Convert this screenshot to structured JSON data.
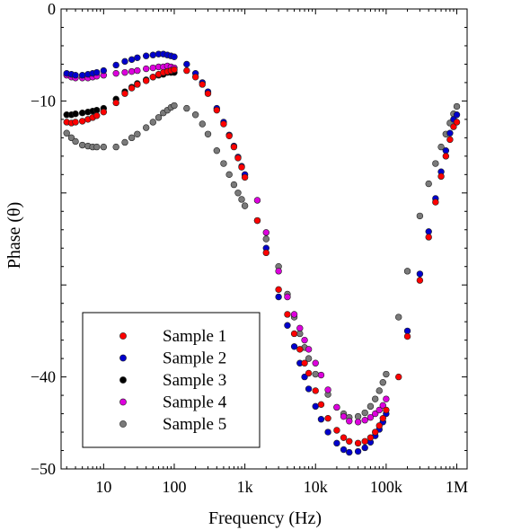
{
  "chart_data": {
    "type": "scatter",
    "xlabel": "Frequency (Hz)",
    "ylabel": "Phase (θ)",
    "x_scale": "log",
    "xlim": [
      2.5,
      1400000
    ],
    "ylim": [
      -50,
      0
    ],
    "x_ticks": [
      {
        "value": 10,
        "label": "10"
      },
      {
        "value": 100,
        "label": "100"
      },
      {
        "value": 1000,
        "label": "1k"
      },
      {
        "value": 10000,
        "label": "10k"
      },
      {
        "value": 100000,
        "label": "100k"
      },
      {
        "value": 1000000,
        "label": "1M"
      }
    ],
    "y_ticks": [
      {
        "value": 0,
        "label": "0"
      },
      {
        "value": -10,
        "label": "−10"
      },
      {
        "value": -40,
        "label": "−40"
      },
      {
        "value": -50,
        "label": "−50"
      }
    ],
    "y_minor_ticks": [
      -20,
      -30
    ],
    "grid": false,
    "legend_position": "bottom-left",
    "series": [
      {
        "name": "Sample 1",
        "color": "#ff0000",
        "x": [
          3,
          3.5,
          4,
          5,
          6,
          7,
          8,
          10,
          15,
          20,
          25,
          30,
          40,
          50,
          60,
          70,
          80,
          90,
          100,
          150,
          200,
          250,
          300,
          400,
          500,
          600,
          700,
          800,
          900,
          1000,
          1500,
          2000,
          3000,
          4000,
          5000,
          6000,
          7000,
          8000,
          10000,
          12000,
          15000,
          20000,
          25000,
          30000,
          40000,
          50000,
          60000,
          70000,
          80000,
          90000,
          100000,
          150000,
          200000,
          300000,
          400000,
          500000,
          600000,
          700000,
          800000,
          900000,
          1000000
        ],
        "y": [
          -12.3,
          -12.4,
          -12.3,
          -12.2,
          -12.0,
          -11.8,
          -11.6,
          -11.2,
          -10.2,
          -9.2,
          -8.6,
          -8.2,
          -7.8,
          -7.4,
          -7.1,
          -6.9,
          -6.8,
          -6.7,
          -6.6,
          -6.7,
          -7.4,
          -8.2,
          -9.2,
          -11.0,
          -12.5,
          -13.8,
          -15.0,
          -16.2,
          -17.2,
          -18.3,
          -23.0,
          -26.5,
          -30.5,
          -33.2,
          -35.3,
          -37.0,
          -38.5,
          -39.6,
          -41.5,
          -43.0,
          -44.5,
          -45.8,
          -46.6,
          -47.0,
          -47.2,
          -47.0,
          -46.6,
          -46.0,
          -45.3,
          -44.5,
          -43.6,
          -40.0,
          -35.6,
          -29.5,
          -24.8,
          -21.0,
          -18.2,
          -16.0,
          -14.2,
          -12.8,
          -12.3
        ]
      },
      {
        "name": "Sample 2",
        "color": "#0000cc",
        "x": [
          3,
          3.5,
          4,
          5,
          6,
          7,
          8,
          10,
          15,
          20,
          25,
          30,
          40,
          50,
          60,
          70,
          80,
          90,
          100,
          150,
          200,
          250,
          300,
          400,
          500,
          600,
          700,
          800,
          900,
          1000,
          2000,
          3000,
          4000,
          5000,
          6000,
          7000,
          8000,
          10000,
          12000,
          15000,
          20000,
          25000,
          30000,
          40000,
          50000,
          60000,
          70000,
          80000,
          90000,
          100000,
          200000,
          300000,
          400000,
          500000,
          600000,
          700000,
          800000,
          900000,
          1000000
        ],
        "y": [
          -7.0,
          -7.1,
          -7.2,
          -7.2,
          -7.1,
          -7.0,
          -6.9,
          -6.7,
          -6.1,
          -5.7,
          -5.5,
          -5.3,
          -5.1,
          -5.0,
          -4.9,
          -4.9,
          -5.0,
          -5.1,
          -5.2,
          -6.0,
          -7.0,
          -8.0,
          -9.0,
          -10.8,
          -12.3,
          -13.7,
          -14.9,
          -16.1,
          -17.1,
          -18.0,
          -26.0,
          -31.3,
          -34.4,
          -36.7,
          -38.5,
          -40.0,
          -41.3,
          -43.2,
          -44.6,
          -46.0,
          -47.2,
          -47.9,
          -48.2,
          -48.1,
          -47.7,
          -47.1,
          -46.4,
          -45.7,
          -44.9,
          -44.0,
          -35.0,
          -28.8,
          -24.2,
          -20.6,
          -17.7,
          -15.4,
          -13.5,
          -12.0,
          -11.5
        ]
      },
      {
        "name": "Sample 3",
        "color": "#000000",
        "x": [
          3,
          3.5,
          4,
          5,
          6,
          7,
          8,
          10,
          15,
          20,
          25,
          30,
          40,
          50,
          60,
          70,
          80,
          90,
          100
        ],
        "y": [
          -11.5,
          -11.5,
          -11.4,
          -11.3,
          -11.2,
          -11.1,
          -11.0,
          -10.8,
          -9.8,
          -9.0,
          -8.5,
          -8.1,
          -7.7,
          -7.4,
          -7.2,
          -7.1,
          -6.9,
          -6.9,
          -6.9
        ]
      },
      {
        "name": "Sample 4",
        "color": "#dd00dd",
        "x": [
          3,
          3.5,
          4,
          5,
          6,
          7,
          8,
          10,
          15,
          20,
          25,
          30,
          40,
          50,
          60,
          70,
          80,
          90,
          100,
          1500,
          2000,
          3000,
          4000,
          5000,
          6000,
          7000,
          8000,
          10000,
          12000,
          15000,
          20000,
          25000,
          30000,
          40000,
          50000,
          60000,
          70000,
          80000,
          90000,
          100000
        ],
        "y": [
          -7.2,
          -7.4,
          -7.5,
          -7.5,
          -7.5,
          -7.4,
          -7.3,
          -7.2,
          -7.0,
          -6.9,
          -6.8,
          -6.7,
          -6.5,
          -6.4,
          -6.3,
          -6.3,
          -6.2,
          -6.3,
          -6.4,
          -20.8,
          -24.3,
          -28.5,
          -31.3,
          -33.2,
          -34.7,
          -36.0,
          -37.0,
          -38.5,
          -39.8,
          -41.4,
          -43.3,
          -44.3,
          -44.8,
          -44.9,
          -44.7,
          -44.4,
          -44.0,
          -43.6,
          -43.1,
          -42.4
        ]
      },
      {
        "name": "Sample 5",
        "color": "#7a7a7a",
        "x": [
          3,
          3.5,
          4,
          5,
          6,
          7,
          8,
          10,
          15,
          20,
          25,
          30,
          40,
          50,
          60,
          70,
          80,
          90,
          100,
          150,
          200,
          250,
          300,
          400,
          500,
          600,
          700,
          800,
          900,
          1000,
          1500,
          2000,
          3000,
          4000,
          5000,
          6000,
          7000,
          8000,
          10000,
          15000,
          20000,
          25000,
          30000,
          40000,
          50000,
          60000,
          70000,
          80000,
          90000,
          100000,
          150000,
          200000,
          300000,
          400000,
          500000,
          600000,
          700000,
          800000,
          900000,
          1000000
        ],
        "y": [
          -13.5,
          -14.0,
          -14.4,
          -14.8,
          -14.9,
          -15.0,
          -15.0,
          -15.0,
          -15.0,
          -14.5,
          -14.0,
          -13.6,
          -12.9,
          -12.3,
          -11.8,
          -11.3,
          -11.0,
          -10.7,
          -10.5,
          -10.8,
          -11.5,
          -12.5,
          -13.6,
          -15.4,
          -16.8,
          -18.0,
          -19.1,
          -20.0,
          -20.7,
          -21.4,
          -23.0,
          -25.0,
          -28.0,
          -31.0,
          -33.5,
          -35.3,
          -36.8,
          -38.0,
          -39.7,
          -41.9,
          -43.3,
          -44.0,
          -44.4,
          -44.3,
          -43.9,
          -43.2,
          -42.4,
          -41.5,
          -40.6,
          -39.7,
          -33.5,
          -28.5,
          -22.5,
          -19.0,
          -16.8,
          -15.0,
          -13.6,
          -12.4,
          -11.4,
          -10.6
        ]
      }
    ]
  }
}
